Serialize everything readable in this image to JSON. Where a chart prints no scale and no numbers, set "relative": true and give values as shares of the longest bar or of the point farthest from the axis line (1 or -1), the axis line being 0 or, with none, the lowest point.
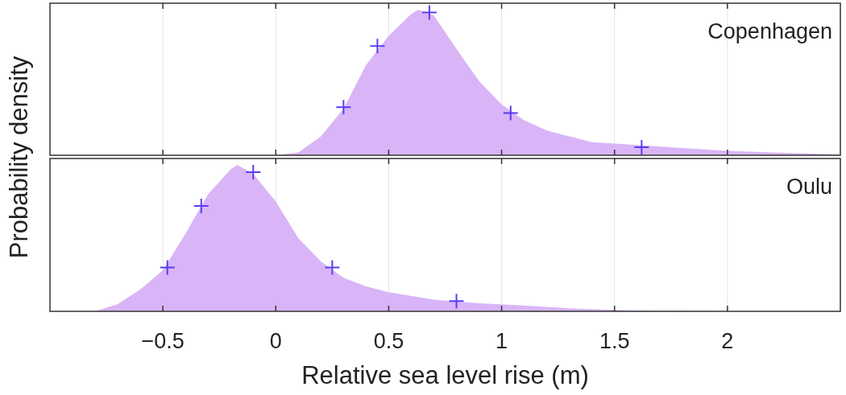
{
  "chart_data": [
    {
      "type": "area",
      "relative": true,
      "ylabel": "Probability density",
      "annotations": [
        "Copenhagen"
      ],
      "xlim": [
        -1,
        2.5
      ],
      "xticks": [
        -0.5,
        0,
        0.5,
        1,
        1.5,
        2
      ],
      "grid": "x",
      "tick_labels": false,
      "series": [
        {
          "color": "#d9b5f7",
          "x": [
            0,
            0.1,
            0.2,
            0.3,
            0.4,
            0.5,
            0.6,
            0.63,
            0.7,
            0.8,
            0.9,
            1.0,
            1.1,
            1.2,
            1.3,
            1.4,
            1.5,
            1.6,
            1.8,
            2.0,
            2.2,
            2.5
          ],
          "values": [
            0,
            0.02,
            0.13,
            0.32,
            0.62,
            0.82,
            0.97,
            1,
            0.96,
            0.73,
            0.51,
            0.35,
            0.24,
            0.17,
            0.13,
            0.09,
            0.08,
            0.07,
            0.05,
            0.03,
            0.02,
            0.005
          ]
        },
        {
          "type": "scatter",
          "marker": "cross",
          "color": "#5a3df0",
          "x": [
            0.3,
            0.45,
            0.68,
            1.04,
            1.62
          ],
          "values": [
            0.33,
            0.75,
            0.98,
            0.29,
            0.055
          ]
        }
      ]
    },
    {
      "type": "area",
      "relative": true,
      "xlabel": "Relative sea level rise (m)",
      "annotations": [
        "Oulu"
      ],
      "xlim": [
        -1,
        2.5
      ],
      "xticks": [
        {
          "value": -0.5,
          "label": "−0.5"
        },
        0,
        0.5,
        1,
        1.5,
        2
      ],
      "grid": "x",
      "tick_labels": "x",
      "series": [
        {
          "color": "#d9b5f7",
          "x": [
            -0.8,
            -0.7,
            -0.6,
            -0.5,
            -0.4,
            -0.3,
            -0.2,
            -0.17,
            -0.1,
            0,
            0.1,
            0.2,
            0.3,
            0.4,
            0.5,
            0.7,
            0.9,
            1.1,
            1.3,
            1.6,
            2.0
          ],
          "values": [
            0,
            0.05,
            0.15,
            0.28,
            0.53,
            0.8,
            0.97,
            1,
            0.94,
            0.75,
            0.5,
            0.34,
            0.23,
            0.17,
            0.13,
            0.08,
            0.055,
            0.04,
            0.02,
            0.005,
            0
          ]
        },
        {
          "type": "scatter",
          "marker": "cross",
          "color": "#5a3df0",
          "x": [
            -0.48,
            -0.33,
            -0.1,
            0.25,
            0.8
          ],
          "values": [
            0.3,
            0.72,
            0.95,
            0.3,
            0.07
          ]
        }
      ]
    }
  ]
}
